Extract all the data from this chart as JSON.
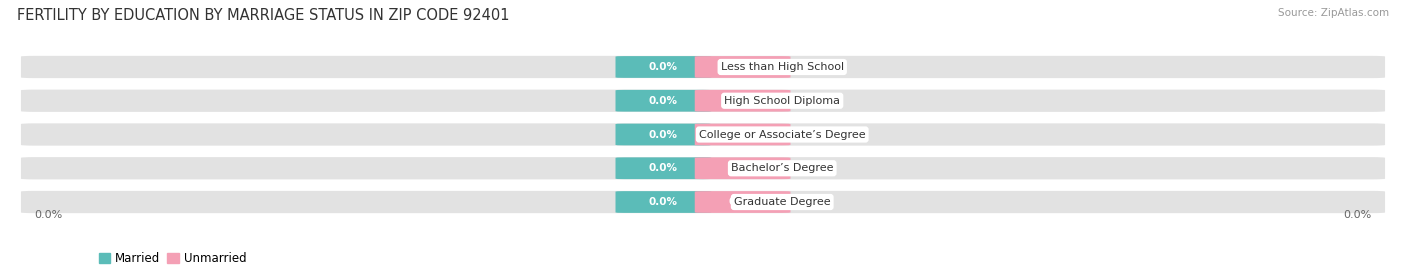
{
  "title": "FERTILITY BY EDUCATION BY MARRIAGE STATUS IN ZIP CODE 92401",
  "source": "Source: ZipAtlas.com",
  "categories": [
    "Less than High School",
    "High School Diploma",
    "College or Associate’s Degree",
    "Bachelor’s Degree",
    "Graduate Degree"
  ],
  "married_values": [
    0.0,
    0.0,
    0.0,
    0.0,
    0.0
  ],
  "unmarried_values": [
    0.0,
    0.0,
    0.0,
    0.0,
    0.0
  ],
  "married_color": "#5bbcb8",
  "unmarried_color": "#f4a0b5",
  "bar_bg_color": "#e2e2e2",
  "background_color": "#ffffff",
  "title_fontsize": 10.5,
  "source_fontsize": 7.5,
  "label_fontsize": 8,
  "value_fontsize": 7.5,
  "legend_fontsize": 8.5,
  "axis_label_fontsize": 8,
  "left_tick_label": "0.0%",
  "right_tick_label": "0.0%"
}
